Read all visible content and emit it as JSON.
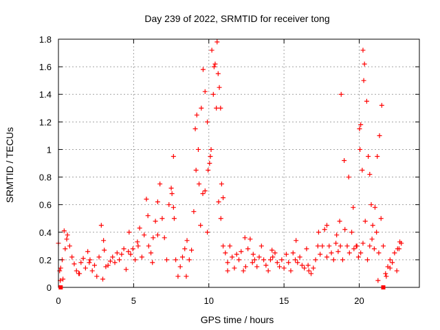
{
  "chart_data": {
    "type": "scatter",
    "title": "Day 239 of 2022, SRMTID for receiver tong",
    "xlabel": "GPS time / hours",
    "ylabel": "SRMTID / TECUs",
    "xlim": [
      0,
      24
    ],
    "ylim": [
      0,
      1.8
    ],
    "xticks": [
      0,
      5,
      10,
      15,
      20
    ],
    "xtick_labels": [
      "0",
      "5",
      "10",
      "15",
      "20"
    ],
    "yticks": [
      0,
      0.2,
      0.4,
      0.6,
      0.8,
      1.0,
      1.2,
      1.4,
      1.6,
      1.8
    ],
    "ytick_labels": [
      "0",
      "0.2",
      "0.4",
      "0.6",
      "0.8",
      "1",
      "1.2",
      "1.4",
      "1.6",
      "1.8"
    ],
    "grid": true,
    "marker": "+",
    "series": [
      {
        "name": "SRMTID",
        "color": "#ff0000",
        "x": [
          0.0,
          0.15,
          0.3,
          0.45,
          0.6,
          0.75,
          0.9,
          1.05,
          1.2,
          1.35,
          1.5,
          1.65,
          1.8,
          1.95,
          2.1,
          2.25,
          2.4,
          2.55,
          2.7,
          2.85,
          3.0,
          3.15,
          3.3,
          3.45,
          3.6,
          3.75,
          3.9,
          4.05,
          4.2,
          4.35,
          4.5,
          4.65,
          4.8,
          4.95,
          5.1,
          5.25,
          5.4,
          5.55,
          5.7,
          5.85,
          6.0,
          6.15,
          6.3,
          6.45,
          6.6,
          6.75,
          6.9,
          7.05,
          7.2,
          7.35,
          7.5,
          7.65,
          7.8,
          7.95,
          8.1,
          8.25,
          8.4,
          8.55,
          8.7,
          8.85,
          9.0,
          9.15,
          9.3,
          9.45,
          9.6,
          9.75,
          9.9,
          10.05,
          10.2,
          10.35,
          10.5,
          10.65,
          10.8,
          10.95,
          11.1,
          11.25,
          11.4,
          11.55,
          11.7,
          11.85,
          12.0,
          12.15,
          12.3,
          12.45,
          12.6,
          12.75,
          12.9,
          13.05,
          13.2,
          13.35,
          13.5,
          13.65,
          13.8,
          13.95,
          14.1,
          14.25,
          14.4,
          14.55,
          14.7,
          14.85,
          15.0,
          15.15,
          15.3,
          15.45,
          15.6,
          15.75,
          15.9,
          16.05,
          16.2,
          16.35,
          16.5,
          16.65,
          16.8,
          16.95,
          17.1,
          17.25,
          17.4,
          17.55,
          17.7,
          17.85,
          18.0,
          18.15,
          18.3,
          18.45,
          18.6,
          18.75,
          18.9,
          19.05,
          19.2,
          19.35,
          19.5,
          19.65,
          19.8,
          19.95,
          20.1,
          20.25,
          20.4,
          20.55,
          20.7,
          20.85,
          21.0,
          21.15,
          21.3,
          21.45,
          21.6,
          21.75,
          21.9,
          22.05,
          22.2,
          22.35,
          22.5,
          22.65,
          22.8,
          9.1,
          9.2,
          9.35,
          9.5,
          9.62,
          9.75,
          9.9,
          10.15,
          10.3,
          10.42,
          10.55,
          10.62,
          10.7,
          10.78,
          10.85,
          10.95,
          10.1,
          9.95,
          20.02,
          20.05,
          20.1,
          20.2,
          20.25,
          20.3,
          20.35,
          20.5,
          20.6,
          20.7,
          20.8,
          20.9,
          21.05,
          21.2,
          21.35,
          21.5,
          18.7,
          18.8,
          19.0,
          19.3,
          19.6,
          19.85,
          0.12,
          0.25,
          0.55,
          1.4,
          3.05,
          4.7,
          5.3,
          5.95,
          6.6,
          7.55,
          7.65,
          12.4,
          14.2,
          17.3,
          17.85,
          18.5,
          22.55,
          22.7,
          0.08,
          0.38,
          2.05,
          2.95,
          6.25,
          7.7,
          8.5,
          11.25,
          12.95,
          15.8,
          16.6,
          21.25,
          21.8,
          22.05
        ],
        "y": [
          0.32,
          0.14,
          0.06,
          0.28,
          0.38,
          0.3,
          0.22,
          0.17,
          0.12,
          0.1,
          0.18,
          0.21,
          0.14,
          0.26,
          0.2,
          0.12,
          0.16,
          0.08,
          0.22,
          0.45,
          0.34,
          0.15,
          0.16,
          0.19,
          0.22,
          0.18,
          0.25,
          0.2,
          0.24,
          0.28,
          0.13,
          0.26,
          0.24,
          0.28,
          0.2,
          0.33,
          0.43,
          0.22,
          0.38,
          0.64,
          0.3,
          0.25,
          0.36,
          0.48,
          0.62,
          0.75,
          0.5,
          0.36,
          0.2,
          0.6,
          0.72,
          0.95,
          0.2,
          0.08,
          0.15,
          0.22,
          0.28,
          0.34,
          0.2,
          0.27,
          0.55,
          0.85,
          1.0,
          0.45,
          0.68,
          0.7,
          0.4,
          0.9,
          1.72,
          1.6,
          1.3,
          0.62,
          0.5,
          0.3,
          0.25,
          0.18,
          0.3,
          0.22,
          0.14,
          0.24,
          0.2,
          0.26,
          0.12,
          0.15,
          0.28,
          0.35,
          0.18,
          0.2,
          0.15,
          0.22,
          0.3,
          0.2,
          0.16,
          0.12,
          0.2,
          0.22,
          0.25,
          0.18,
          0.15,
          0.2,
          0.14,
          0.24,
          0.18,
          0.12,
          0.25,
          0.2,
          0.18,
          0.22,
          0.16,
          0.14,
          0.28,
          0.12,
          0.1,
          0.14,
          0.2,
          0.3,
          0.24,
          0.3,
          0.42,
          0.22,
          0.3,
          0.25,
          0.2,
          0.32,
          0.26,
          0.3,
          0.2,
          0.42,
          0.3,
          0.25,
          0.4,
          0.28,
          0.3,
          0.22,
          0.25,
          0.32,
          0.48,
          0.2,
          0.3,
          0.35,
          0.28,
          0.4,
          0.25,
          0.5,
          0.3,
          0.1,
          0.15,
          0.2,
          0.18,
          0.25,
          0.12,
          0.28,
          0.32,
          1.15,
          1.25,
          0.75,
          1.3,
          1.58,
          1.42,
          1.2,
          1.0,
          1.4,
          1.62,
          1.78,
          1.55,
          1.45,
          1.3,
          0.75,
          0.65,
          0.95,
          0.85,
          1.15,
          1.0,
          1.18,
          0.85,
          1.72,
          1.5,
          1.62,
          1.35,
          0.95,
          0.82,
          0.6,
          0.45,
          0.58,
          0.95,
          1.1,
          1.32,
          0.48,
          1.4,
          0.92,
          0.8,
          0.58,
          0.3,
          0.05,
          0.2,
          0.35,
          0.1,
          0.27,
          0.4,
          0.3,
          0.52,
          0.38,
          0.68,
          0.58,
          0.36,
          0.27,
          0.4,
          0.45,
          0.38,
          0.28,
          0.33,
          0.12,
          0.41,
          0.18,
          0.06,
          0.18,
          0.5,
          0.08,
          0.12,
          0.24,
          0.34,
          0.16,
          0.05,
          0.08,
          0.14
        ]
      }
    ]
  },
  "footer_markers": [
    {
      "name": "data-gap-start",
      "x": 0.15
    },
    {
      "name": "data-gap-end",
      "x": 21.6
    }
  ]
}
